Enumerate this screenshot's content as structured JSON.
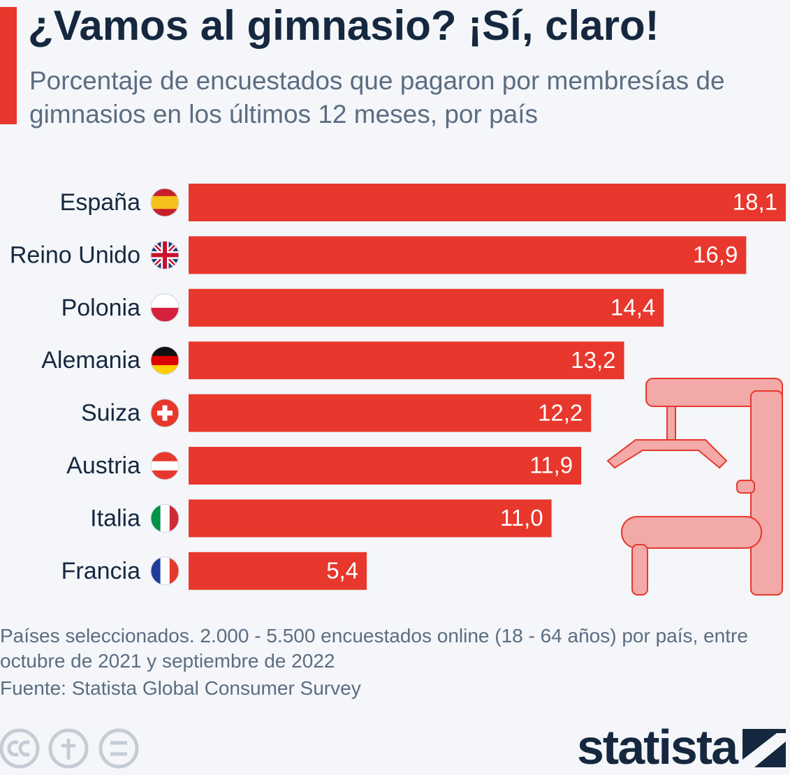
{
  "chart_data": {
    "type": "bar",
    "title": "¿Vamos al gimnasio? ¡Sí, claro!",
    "subtitle": "Porcentaje de encuestados que pagaron por membresías de gimnasios en los últimos 12 meses, por país",
    "categories": [
      "España",
      "Reino Unido",
      "Polonia",
      "Alemania",
      "Suiza",
      "Austria",
      "Italia",
      "Francia"
    ],
    "values": [
      18.1,
      16.9,
      14.4,
      13.2,
      12.2,
      11.9,
      11.0,
      5.4
    ],
    "value_labels": [
      "18,1",
      "16,9",
      "14,4",
      "13,2",
      "12,2",
      "11,9",
      "11,0",
      "5,4"
    ],
    "color": "#e8372c",
    "note": "Países seleccionados. 2.000 - 5.500 encuestados online (18 - 64 años) por país, entre octubre de 2021 y septiembre de 2022",
    "source": "Fuente: Statista Global Consumer Survey",
    "logo": "statista"
  }
}
